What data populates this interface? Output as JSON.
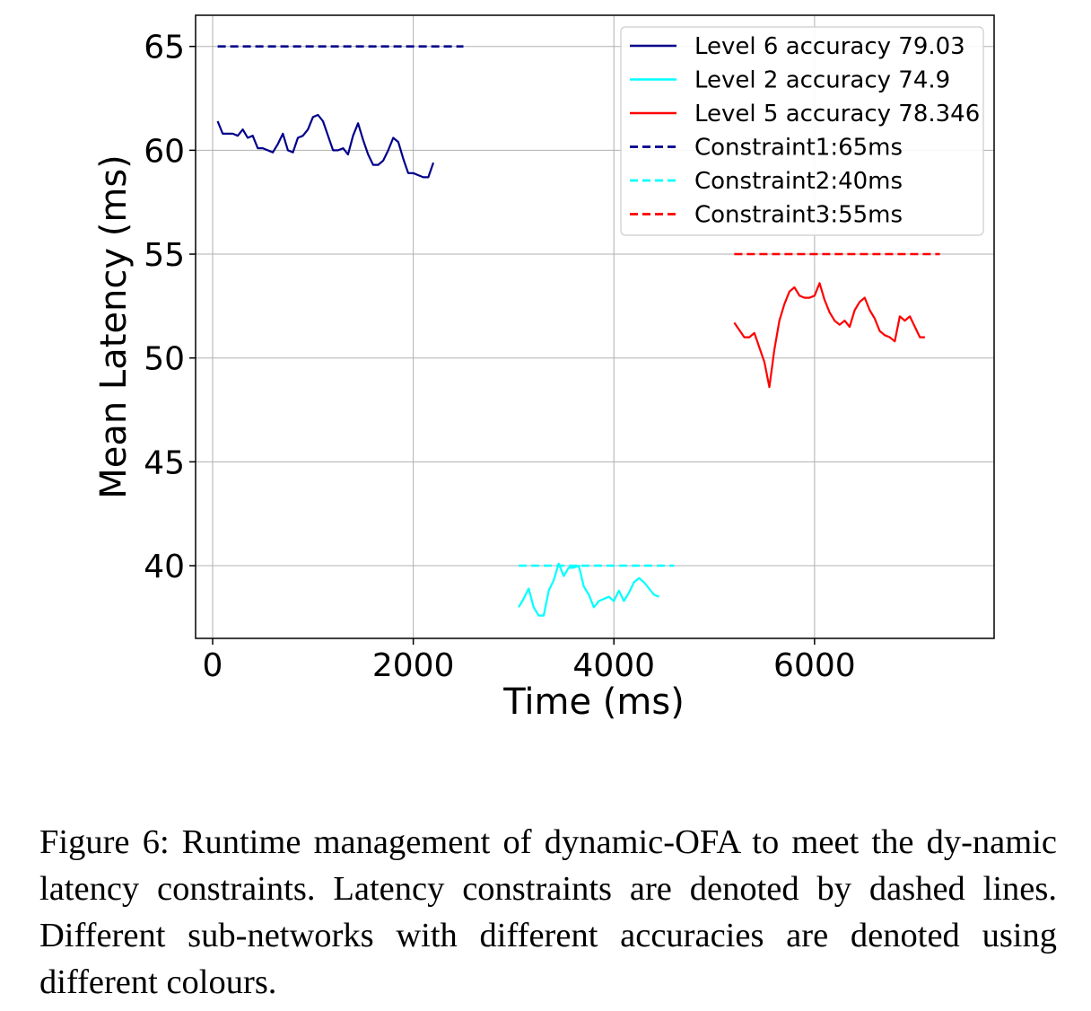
{
  "chart_data": {
    "type": "line",
    "title": "",
    "xlabel": "Time (ms)",
    "ylabel": "Mean Latency (ms)",
    "xlim": [
      -170,
      7790
    ],
    "ylim": [
      36.5,
      66.5
    ],
    "xticks": [
      0,
      2000,
      4000,
      6000
    ],
    "yticks": [
      40,
      45,
      50,
      55,
      60,
      65
    ],
    "grid": true,
    "legend_position": "top-right",
    "series": [
      {
        "name": "Level 6 accuracy 79.03",
        "color": "#00008b",
        "style": "solid",
        "x": [
          50,
          100,
          200,
          250,
          300,
          350,
          400,
          450,
          500,
          600,
          650,
          700,
          750,
          800,
          850,
          900,
          950,
          1000,
          1050,
          1100,
          1150,
          1200,
          1250,
          1300,
          1350,
          1400,
          1450,
          1500,
          1550,
          1600,
          1650,
          1700,
          1750,
          1800,
          1850,
          1900,
          1950,
          2000,
          2050,
          2100,
          2150,
          2200,
          2250,
          2300,
          2350,
          2400,
          2450,
          2500
        ],
        "y": [
          61.4,
          60.8,
          60.8,
          60.7,
          61.0,
          60.6,
          60.7,
          60.1,
          60.1,
          59.9,
          60.3,
          60.8,
          60.0,
          59.9,
          60.6,
          60.7,
          61.0,
          61.6,
          61.7,
          61.4,
          60.7,
          60.0,
          60.0,
          60.1,
          59.8,
          60.7,
          61.3,
          60.5,
          59.8,
          59.3,
          59.3,
          59.5,
          60.0,
          60.6,
          60.4,
          59.6,
          58.9,
          58.9,
          58.8,
          58.7,
          58.7,
          59.4,
          null,
          null,
          null,
          null,
          null,
          null
        ]
      },
      {
        "name": "Level 2 accuracy 74.9",
        "color": "#00ffff",
        "style": "solid",
        "x": [
          3050,
          3100,
          3150,
          3200,
          3250,
          3300,
          3350,
          3400,
          3450,
          3500,
          3550,
          3600,
          3650,
          3700,
          3750,
          3800,
          3850,
          3900,
          3950,
          4000,
          4050,
          4100,
          4150,
          4200,
          4250,
          4300,
          4350,
          4400,
          4450,
          4500,
          4550,
          4600
        ],
        "y": [
          38.0,
          38.4,
          38.9,
          38.0,
          37.6,
          37.6,
          38.8,
          39.3,
          40.1,
          39.5,
          39.9,
          39.9,
          40.0,
          39.0,
          38.6,
          38.0,
          38.3,
          38.4,
          38.5,
          38.3,
          38.8,
          38.3,
          38.7,
          39.2,
          39.4,
          39.2,
          38.9,
          38.6,
          38.5,
          null,
          null,
          null
        ]
      },
      {
        "name": "Level 5 accuracy 78.346",
        "color": "#ff0000",
        "style": "solid",
        "x": [
          5200,
          5300,
          5350,
          5400,
          5450,
          5500,
          5550,
          5600,
          5650,
          5700,
          5750,
          5800,
          5850,
          5900,
          5950,
          6000,
          6050,
          6100,
          6150,
          6200,
          6250,
          6300,
          6350,
          6400,
          6450,
          6500,
          6550,
          6600,
          6650,
          6700,
          6750,
          6800,
          6850,
          6900,
          6950,
          7000,
          7050,
          7100,
          7150,
          7200,
          7250
        ],
        "y": [
          51.7,
          51.0,
          51.0,
          51.2,
          50.5,
          49.8,
          48.6,
          50.4,
          51.8,
          52.6,
          53.2,
          53.4,
          53.0,
          52.9,
          52.9,
          53.0,
          53.6,
          52.8,
          52.2,
          51.8,
          51.6,
          51.8,
          51.5,
          52.3,
          52.7,
          52.9,
          52.3,
          51.9,
          51.3,
          51.1,
          51.0,
          50.8,
          52.0,
          51.8,
          52.0,
          51.5,
          51.0,
          51.0,
          null,
          null,
          null
        ]
      },
      {
        "name": "Constraint1:65ms",
        "color": "#00008b",
        "style": "dashed",
        "x": [
          50,
          2500
        ],
        "y": [
          65,
          65
        ]
      },
      {
        "name": "Constraint2:40ms",
        "color": "#00ffff",
        "style": "dashed",
        "x": [
          3050,
          4600
        ],
        "y": [
          40,
          40
        ]
      },
      {
        "name": "Constraint3:55ms",
        "color": "#ff0000",
        "style": "dashed",
        "x": [
          5200,
          7250
        ],
        "y": [
          55,
          55
        ]
      }
    ]
  },
  "caption": "Figure 6: Runtime management of dynamic-OFA to meet the dy-namic latency constraints.  Latency constraints are denoted by dashed lines. Different sub-networks with different accuracies are denoted using different colours."
}
